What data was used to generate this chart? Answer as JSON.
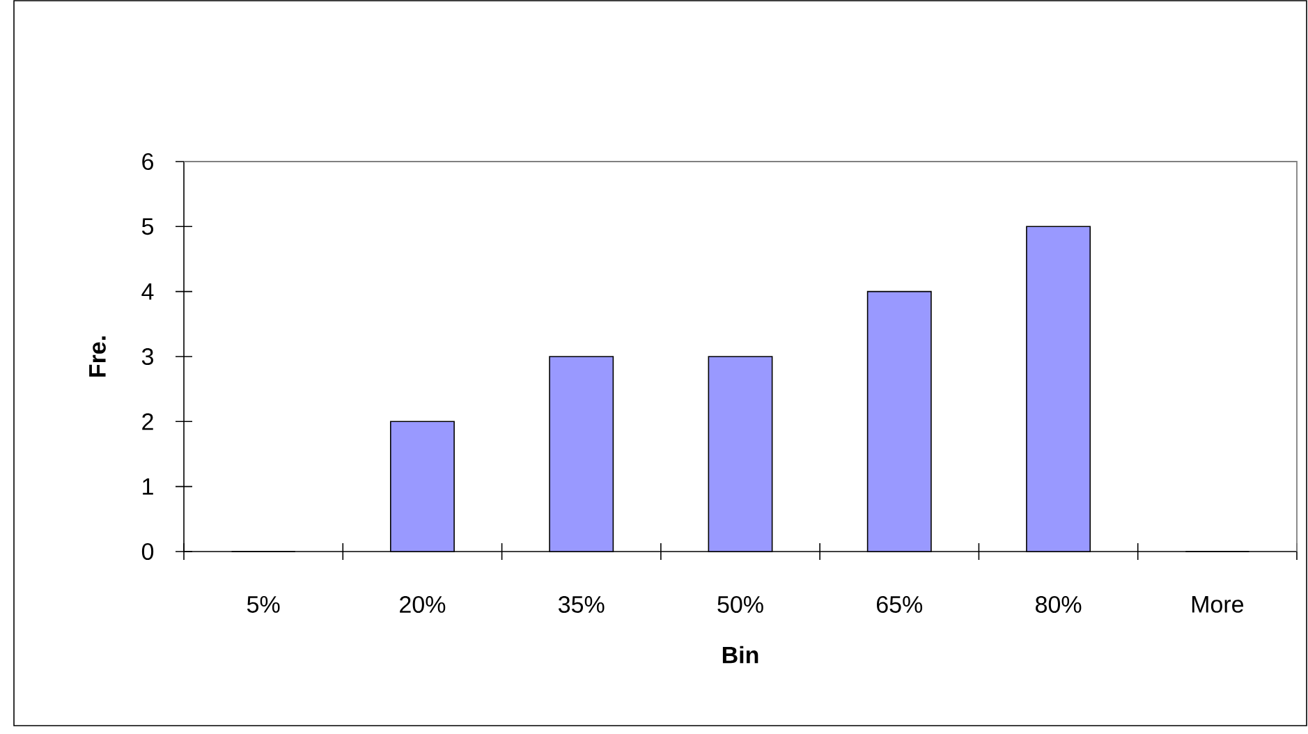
{
  "chart_data": {
    "type": "bar",
    "categories": [
      "5%",
      "20%",
      "35%",
      "50%",
      "65%",
      "80%",
      "More"
    ],
    "values": [
      0,
      2,
      3,
      3,
      4,
      5,
      0
    ],
    "color": "#9999ff",
    "xlabel": "Bin",
    "ylabel": "Fre.",
    "ylim": [
      0,
      6
    ],
    "yticks": [
      0,
      1,
      2,
      3,
      4,
      5,
      6
    ]
  }
}
